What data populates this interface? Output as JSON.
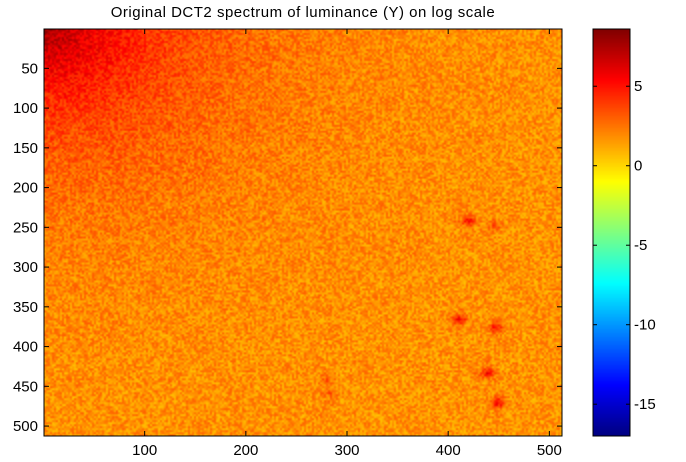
{
  "chart_data": {
    "type": "heatmap",
    "title": "Original DCT2 spectrum of luminance (Y) on log scale",
    "xlabel": "",
    "ylabel": "",
    "x_range": [
      1,
      512
    ],
    "y_range": [
      1,
      512
    ],
    "x_ticks": [
      100,
      200,
      300,
      400,
      500
    ],
    "y_ticks": [
      50,
      100,
      150,
      200,
      250,
      300,
      350,
      400,
      450,
      500
    ],
    "y_axis_direction": "top-to-bottom",
    "colormap": "jet",
    "colorbar": {
      "range": [
        -17,
        8.6
      ],
      "ticks": [
        5,
        0,
        -5,
        -10,
        -15
      ],
      "position": "right"
    },
    "field": {
      "corner_value": 8,
      "background_value": 1.7,
      "noise_amplitude": 1.2
    },
    "peaks": [
      {
        "x": 420,
        "y": 242,
        "value": 5
      },
      {
        "x": 445,
        "y": 248,
        "value": 3.5
      },
      {
        "x": 411,
        "y": 366,
        "value": 5.5
      },
      {
        "x": 447,
        "y": 376,
        "value": 5
      },
      {
        "x": 439,
        "y": 433,
        "value": 5.5
      },
      {
        "x": 449,
        "y": 470,
        "value": 5.5
      },
      {
        "x": 279,
        "y": 442,
        "value": 3
      },
      {
        "x": 284,
        "y": 458,
        "value": 3
      }
    ],
    "grid": false
  }
}
